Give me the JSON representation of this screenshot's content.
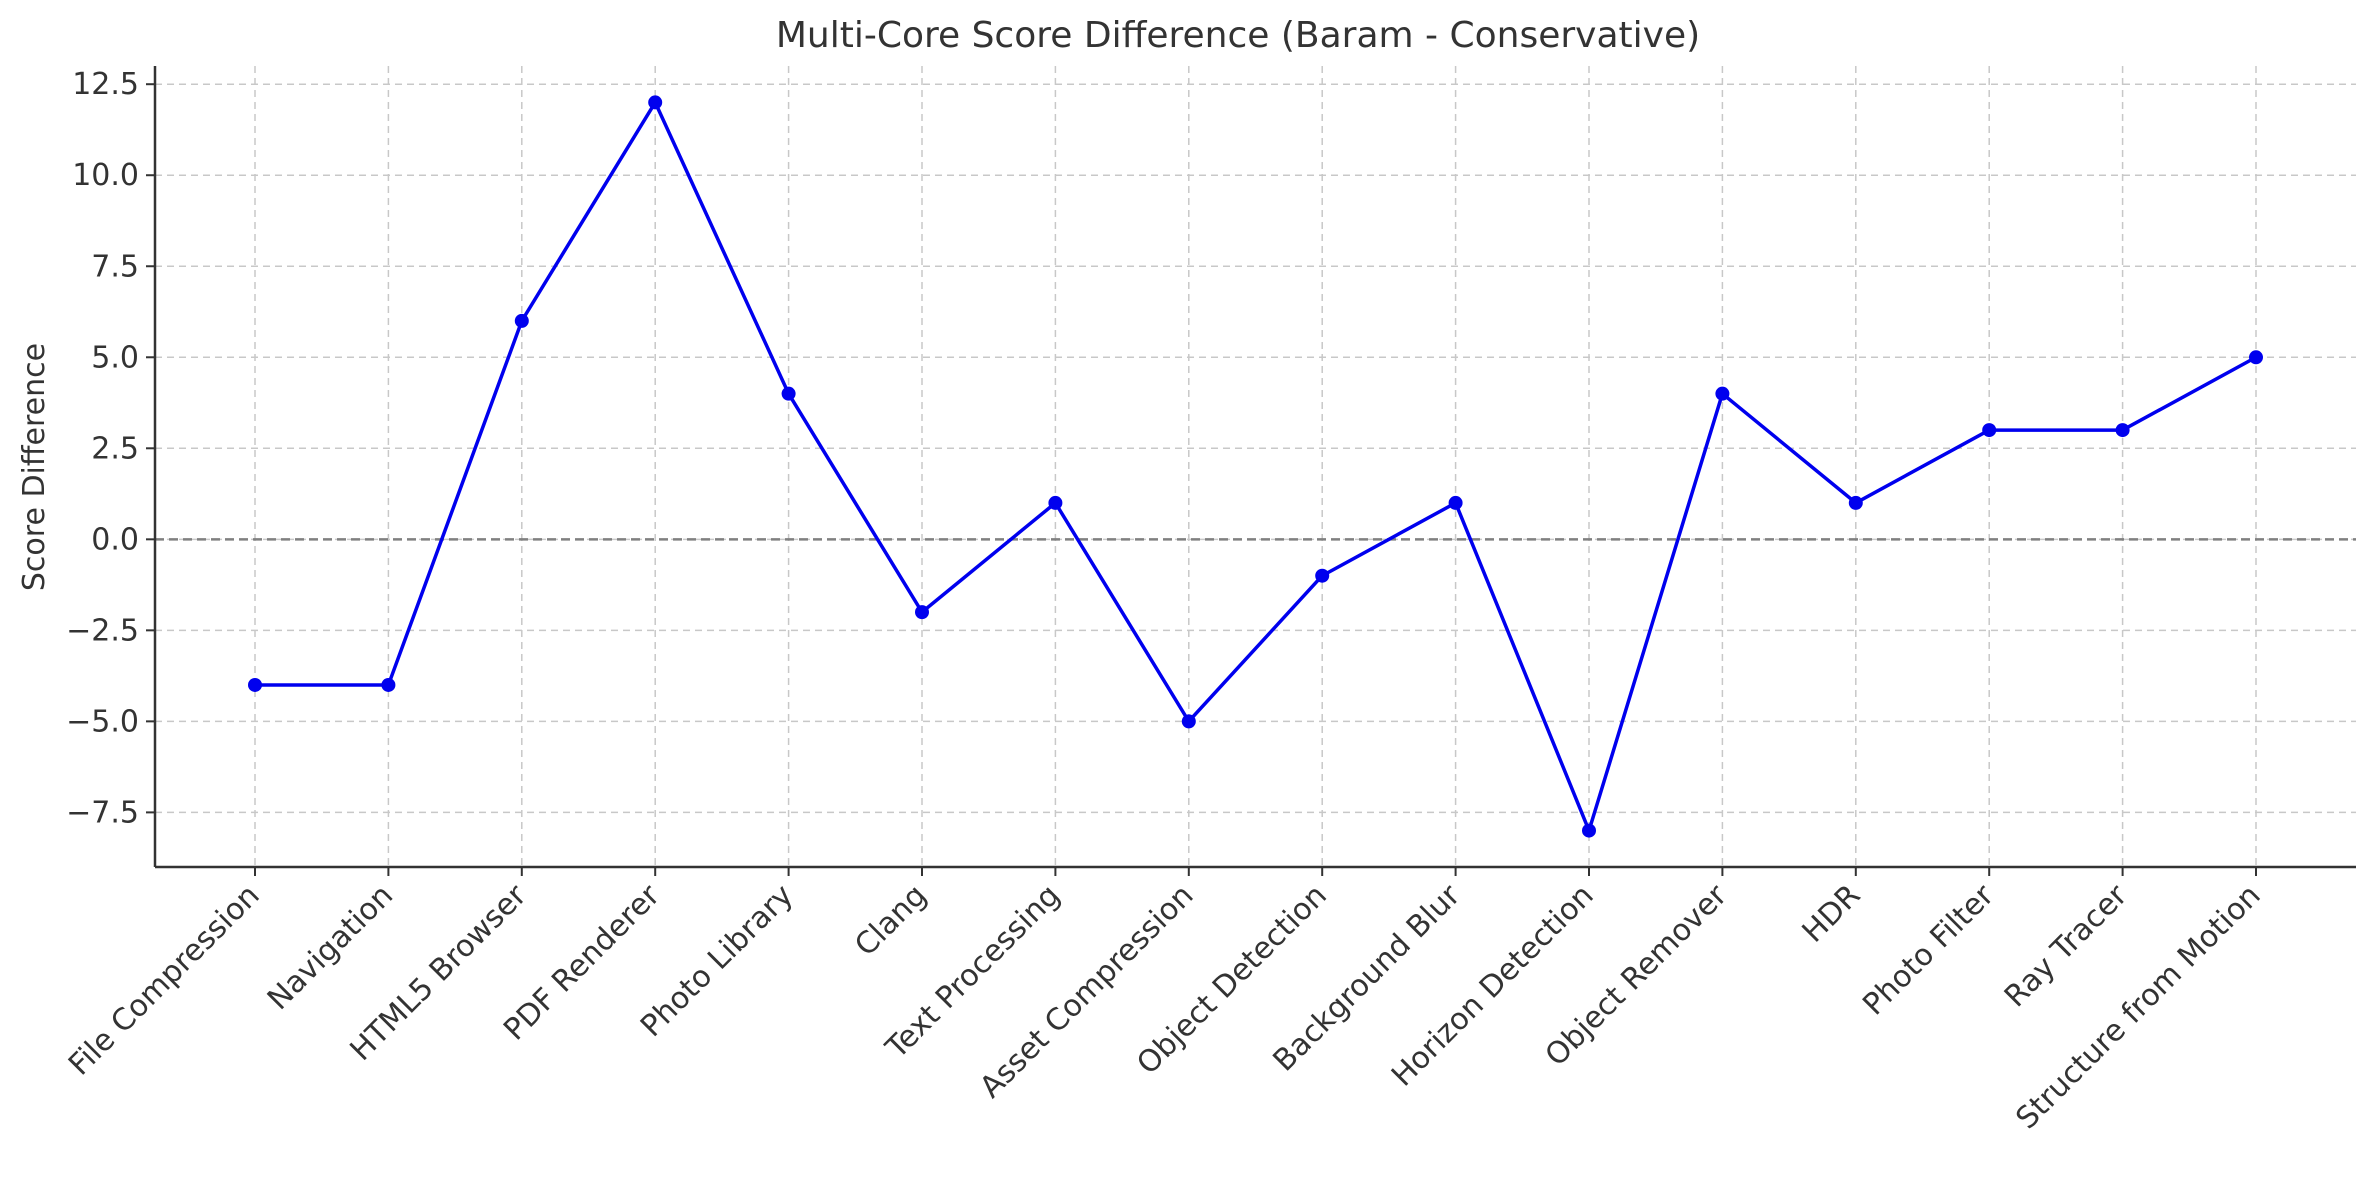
{
  "chart_data": {
    "type": "line",
    "title": "Multi-Core Score Difference (Baram - Conservative)",
    "xlabel": "",
    "ylabel": "Score Difference",
    "categories": [
      "File Compression",
      "Navigation",
      "HTML5 Browser",
      "PDF Renderer",
      "Photo Library",
      "Clang",
      "Text Processing",
      "Asset Compression",
      "Object Detection",
      "Background Blur",
      "Horizon Detection",
      "Object Remover",
      "HDR",
      "Photo Filter",
      "Ray Tracer",
      "Structure from Motion"
    ],
    "series": [
      {
        "values": [
          -4,
          -4,
          6,
          12,
          4,
          -2,
          1,
          -5,
          -1,
          1,
          -8,
          4,
          1,
          3,
          3,
          5
        ],
        "color": "#0000ee",
        "marker": "circle"
      }
    ],
    "ylim": [
      -9,
      13
    ],
    "yticks": [
      -7.5,
      -5.0,
      -2.5,
      0.0,
      2.5,
      5.0,
      7.5,
      10.0,
      12.5
    ],
    "yticklabels": [
      "−7.5",
      "−5.0",
      "−2.5",
      "0.0",
      "2.5",
      "5.0",
      "7.5",
      "10.0",
      "12.5"
    ],
    "reference_line": {
      "y": 0,
      "color": "#808080",
      "style": "dashed"
    },
    "grid": true,
    "legend": false
  }
}
